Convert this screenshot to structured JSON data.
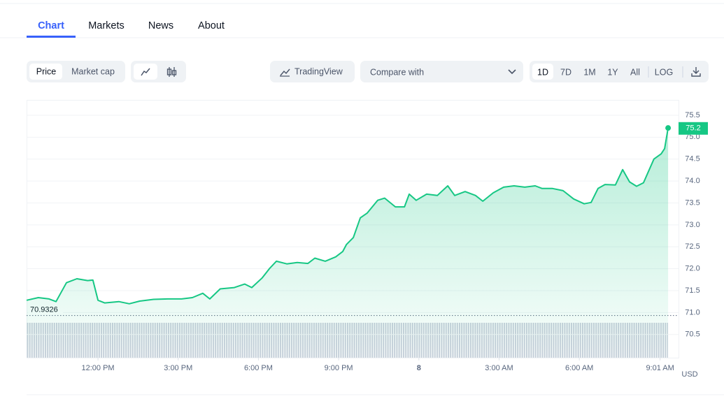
{
  "tabs": [
    "Chart",
    "Markets",
    "News",
    "About"
  ],
  "toolbar": {
    "price_toggle": [
      "Price",
      "Market cap"
    ],
    "tradingview": "TradingView",
    "compare": "Compare with",
    "ranges": [
      "1D",
      "7D",
      "1M",
      "1Y",
      "All",
      "LOG"
    ]
  },
  "chart_data": {
    "type": "line",
    "currency": "USD",
    "x": [
      9.33,
      9.77,
      10.17,
      10.43,
      10.82,
      11.21,
      11.61,
      11.81,
      12.0,
      12.25,
      12.78,
      13.17,
      13.56,
      14.08,
      14.61,
      15.13,
      15.53,
      15.92,
      16.18,
      16.57,
      17.1,
      17.49,
      17.75,
      18.14,
      18.41,
      18.67,
      19.06,
      19.45,
      19.85,
      20.11,
      20.5,
      20.89,
      21.15,
      21.29,
      21.55,
      21.81,
      22.07,
      22.46,
      22.72,
      23.12,
      23.46,
      23.64,
      23.9,
      24.29,
      24.69,
      25.08,
      25.34,
      25.73,
      26.12,
      26.39,
      26.78,
      27.17,
      27.56,
      27.96,
      28.35,
      28.61,
      29.0,
      29.39,
      29.79,
      30.18,
      30.44,
      30.7,
      30.96,
      31.35,
      31.62,
      31.88,
      32.14,
      32.4,
      32.79,
      33.06,
      33.19,
      33.32
    ],
    "series": [
      {
        "color": "#16c784",
        "values": [
          71.28,
          71.34,
          71.31,
          71.25,
          71.68,
          71.77,
          71.73,
          71.74,
          71.28,
          71.22,
          71.25,
          71.2,
          71.26,
          71.3,
          71.31,
          71.31,
          71.34,
          71.44,
          71.31,
          71.54,
          71.57,
          71.65,
          71.57,
          71.79,
          72.0,
          72.17,
          72.11,
          72.14,
          72.12,
          72.24,
          72.17,
          72.27,
          72.39,
          72.55,
          72.71,
          73.16,
          73.27,
          73.56,
          73.61,
          73.41,
          73.41,
          73.7,
          73.56,
          73.7,
          73.67,
          73.89,
          73.67,
          73.76,
          73.67,
          73.54,
          73.73,
          73.86,
          73.89,
          73.86,
          73.89,
          73.83,
          73.83,
          73.78,
          73.59,
          73.48,
          73.51,
          73.83,
          73.92,
          73.91,
          74.26,
          73.98,
          73.88,
          73.96,
          74.5,
          74.62,
          74.74,
          75.21
        ]
      }
    ],
    "xlim": [
      9.33,
      33.71
    ],
    "xticks": [
      {
        "value": 12,
        "label": "12:00 PM"
      },
      {
        "value": 15,
        "label": "3:00 PM"
      },
      {
        "value": 18,
        "label": "6:00 PM"
      },
      {
        "value": 21,
        "label": "9:00 PM"
      },
      {
        "value": 24,
        "label": "8"
      },
      {
        "value": 27,
        "label": "3:00 AM"
      },
      {
        "value": 30,
        "label": "6:00 AM"
      },
      {
        "value": 33.02,
        "label": "9:01 AM"
      }
    ],
    "ylim": [
      69.97,
      75.85
    ],
    "yticks": [
      70.5,
      {
        "value": 71,
        "label": "71.0"
      },
      71.5,
      {
        "value": 72,
        "label": "72.0"
      },
      72.5,
      {
        "value": 73,
        "label": "73.0"
      },
      73.5,
      {
        "value": 74,
        "label": "74.0"
      },
      74.5,
      {
        "value": 75,
        "label": "75.0"
      },
      75.5
    ],
    "grid": true,
    "reference_line": 70.9326,
    "current_price": 75.2
  }
}
